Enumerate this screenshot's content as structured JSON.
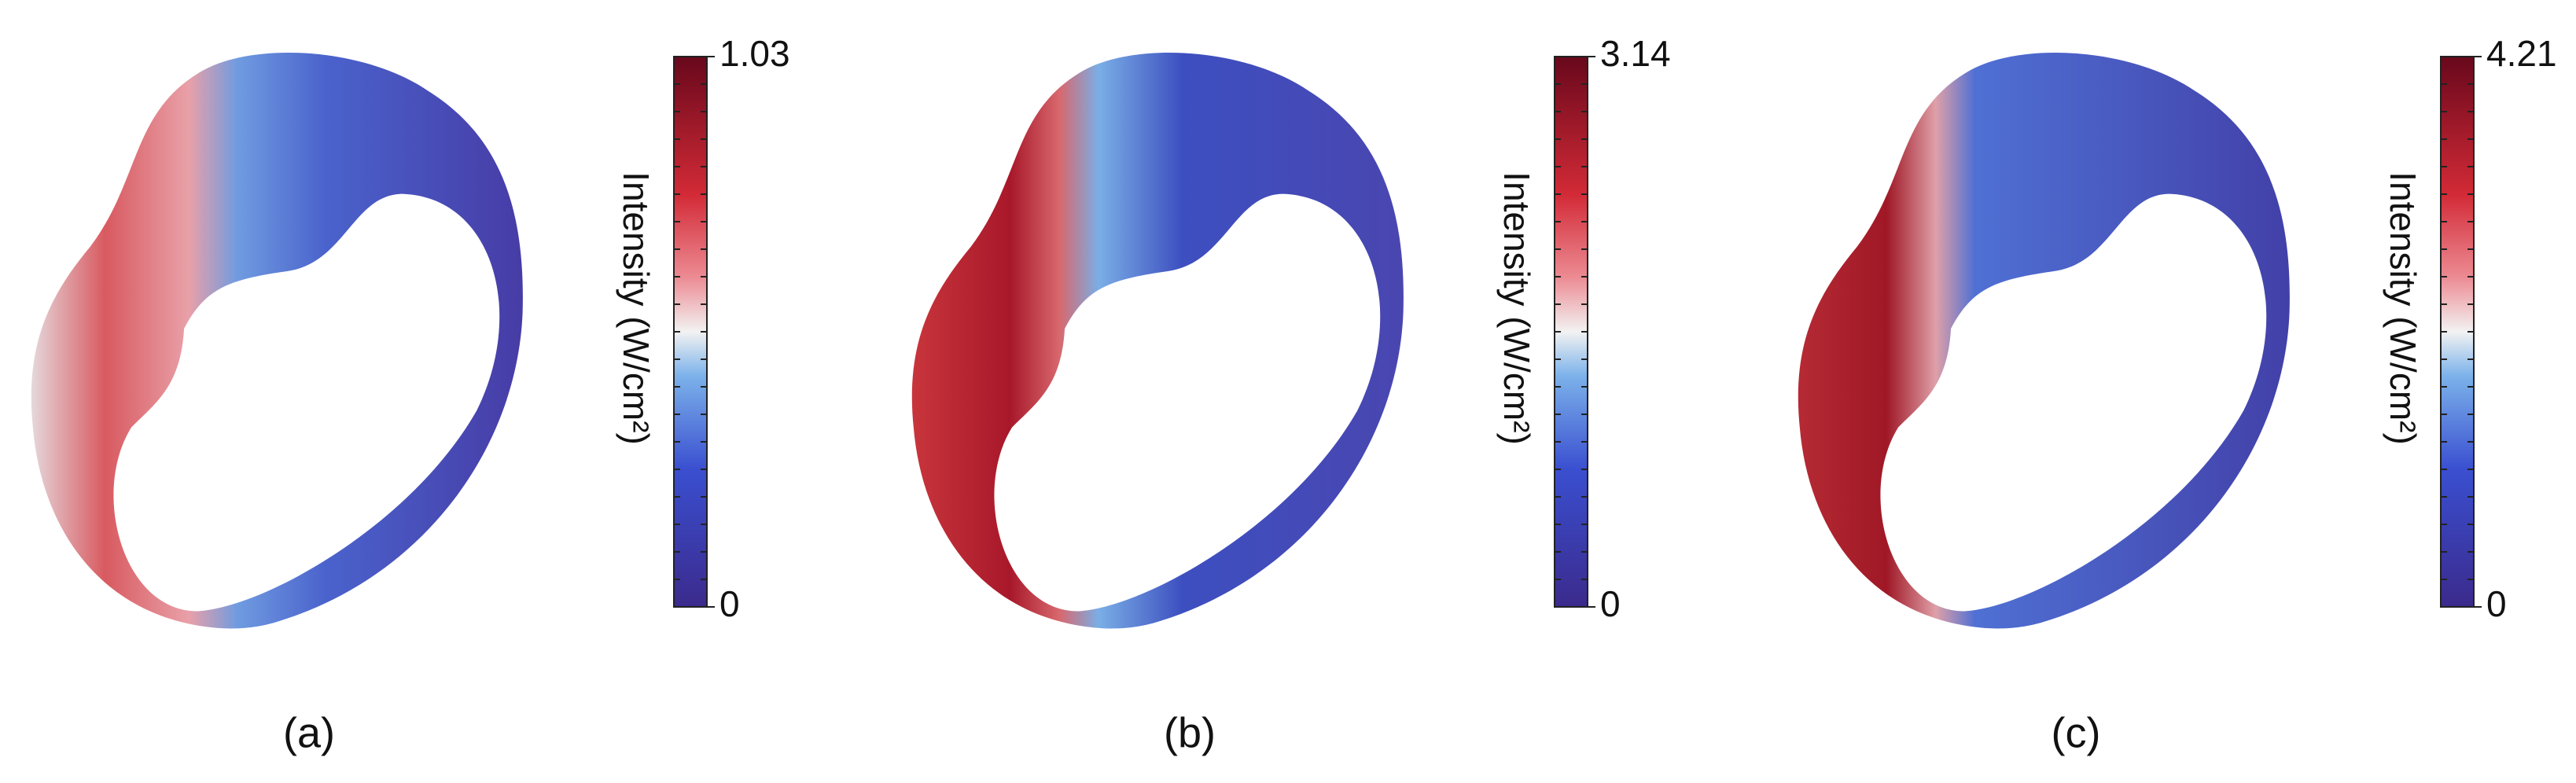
{
  "panels": [
    {
      "label": "(a)",
      "colorbar": {
        "label": "Intensity (W/cm²)",
        "ticks": [
          0,
          1.03
        ]
      }
    },
    {
      "label": "(b)",
      "colorbar": {
        "label": "Intensity (W/cm²)",
        "ticks": [
          0,
          3.14
        ]
      }
    },
    {
      "label": "(c)",
      "colorbar": {
        "label": "Intensity (W/cm²)",
        "ticks": [
          0,
          4.21
        ]
      }
    }
  ]
}
